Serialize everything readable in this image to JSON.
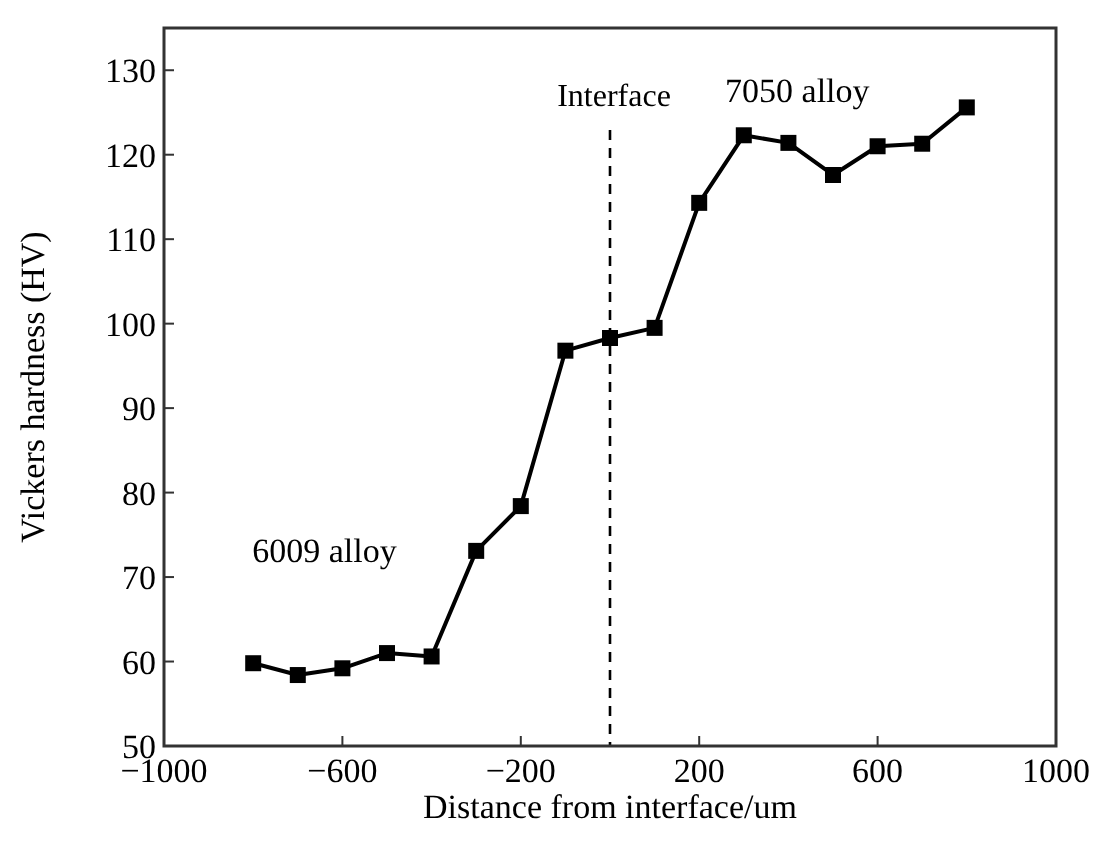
{
  "chart_data": {
    "type": "line",
    "xlabel": "Distance from interface/um",
    "ylabel": "Vickers hardness (HV)",
    "x": [
      -800,
      -700,
      -600,
      -500,
      -400,
      -300,
      -200,
      -100,
      0,
      100,
      200,
      300,
      400,
      500,
      600,
      700,
      800
    ],
    "series": [
      {
        "color": "#000000",
        "values": [
          59.8,
          58.4,
          59.2,
          61.0,
          60.6,
          73.1,
          78.4,
          96.8,
          98.3,
          99.5,
          114.3,
          122.3,
          121.4,
          117.6,
          121.0,
          121.3,
          125.6
        ]
      }
    ],
    "xlim": [
      -1000,
      1000
    ],
    "xticks": [
      -1000,
      -600,
      -200,
      200,
      600,
      1000
    ],
    "ylim": [
      50,
      135
    ],
    "yticks": [
      50,
      60,
      70,
      80,
      90,
      100,
      110,
      120,
      130
    ],
    "marker": "square",
    "line_style": "solid",
    "grid": false,
    "ref_lines": [
      {
        "axis": "x",
        "value": 0,
        "label": "Interface",
        "line_style": "dashed",
        "color": "#000000"
      }
    ],
    "annotations": [
      "6009 alloy",
      "7050 alloy"
    ]
  }
}
